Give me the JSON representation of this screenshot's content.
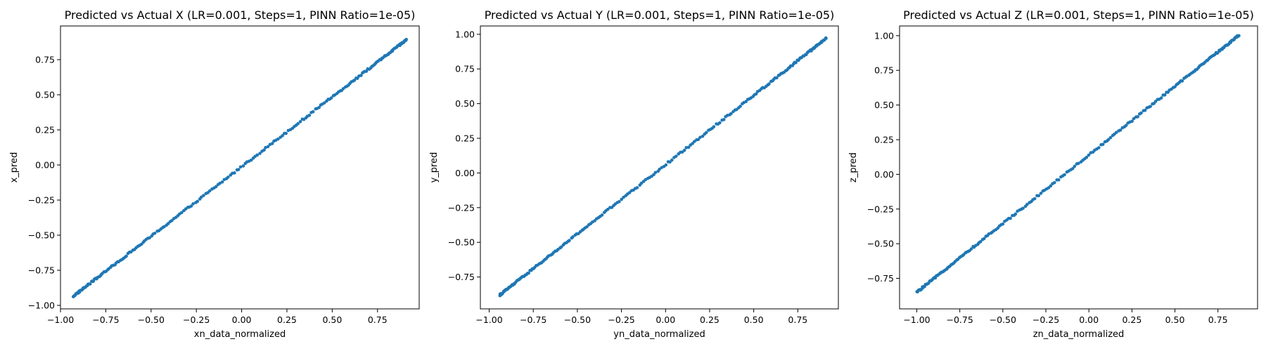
{
  "chart_data": [
    {
      "type": "scatter",
      "title": "Predicted vs Actual X (LR=0.001, Steps=1, PINN Ratio=1e-05)",
      "xlabel": "xn_data_normalized",
      "ylabel": "x_pred",
      "xlim": [
        -1.0,
        0.98
      ],
      "ylim": [
        -1.025,
        0.99
      ],
      "xticks": [
        -1.0,
        -0.75,
        -0.5,
        -0.25,
        0.0,
        0.25,
        0.5,
        0.75
      ],
      "xtick_labels": [
        "−1.00",
        "−0.75",
        "−0.50",
        "−0.25",
        "0.00",
        "0.25",
        "0.50",
        "0.75"
      ],
      "yticks": [
        -1.0,
        -0.75,
        -0.5,
        -0.25,
        0.0,
        0.25,
        0.5,
        0.75
      ],
      "ytick_labels": [
        "−1.00",
        "−0.75",
        "−0.50",
        "−0.25",
        "0.00",
        "0.25",
        "0.50",
        "0.75"
      ],
      "grid": false,
      "color": "#1f77b4",
      "x_range": [
        -0.93,
        0.91
      ],
      "slope": 0.993,
      "intercept": -0.012,
      "point_count": 220
    },
    {
      "type": "scatter",
      "title": "Predicted vs Actual Y (LR=0.001, Steps=1, PINN Ratio=1e-05)",
      "xlabel": "yn_data_normalized",
      "ylabel": "y_pred",
      "xlim": [
        -1.05,
        0.98
      ],
      "ylim": [
        -0.98,
        1.06
      ],
      "xticks": [
        -1.0,
        -0.75,
        -0.5,
        -0.25,
        0.0,
        0.25,
        0.5,
        0.75
      ],
      "xtick_labels": [
        "−1.00",
        "−0.75",
        "−0.50",
        "−0.25",
        "0.00",
        "0.25",
        "0.50",
        "0.75"
      ],
      "yticks": [
        -0.75,
        -0.5,
        -0.25,
        0.0,
        0.25,
        0.5,
        0.75,
        1.0
      ],
      "ytick_labels": [
        "−0.75",
        "−0.50",
        "−0.25",
        "0.00",
        "0.25",
        "0.50",
        "0.75",
        "1.00"
      ],
      "grid": false,
      "color": "#1f77b4",
      "x_range": [
        -0.94,
        0.91
      ],
      "slope": 1.0,
      "intercept": 0.06,
      "point_count": 220
    },
    {
      "type": "scatter",
      "title": "Predicted vs Actual Z (LR=0.001, Steps=1, PINN Ratio=1e-05)",
      "xlabel": "zn_data_normalized",
      "ylabel": "z_pred",
      "xlim": [
        -1.1,
        0.98
      ],
      "ylim": [
        -0.97,
        1.07
      ],
      "xticks": [
        -1.0,
        -0.75,
        -0.5,
        -0.25,
        0.0,
        0.25,
        0.5,
        0.75
      ],
      "xtick_labels": [
        "−1.00",
        "−0.75",
        "−0.50",
        "−0.25",
        "0.00",
        "0.25",
        "0.50",
        "0.75"
      ],
      "yticks": [
        -0.75,
        -0.5,
        -0.25,
        0.0,
        0.25,
        0.5,
        0.75,
        1.0
      ],
      "ytick_labels": [
        "−0.75",
        "−0.50",
        "−0.25",
        "0.00",
        "0.25",
        "0.50",
        "0.75",
        "1.00"
      ],
      "grid": false,
      "color": "#1f77b4",
      "x_range": [
        -1.0,
        0.87
      ],
      "slope": 0.99,
      "intercept": 0.14,
      "point_count": 220
    }
  ]
}
